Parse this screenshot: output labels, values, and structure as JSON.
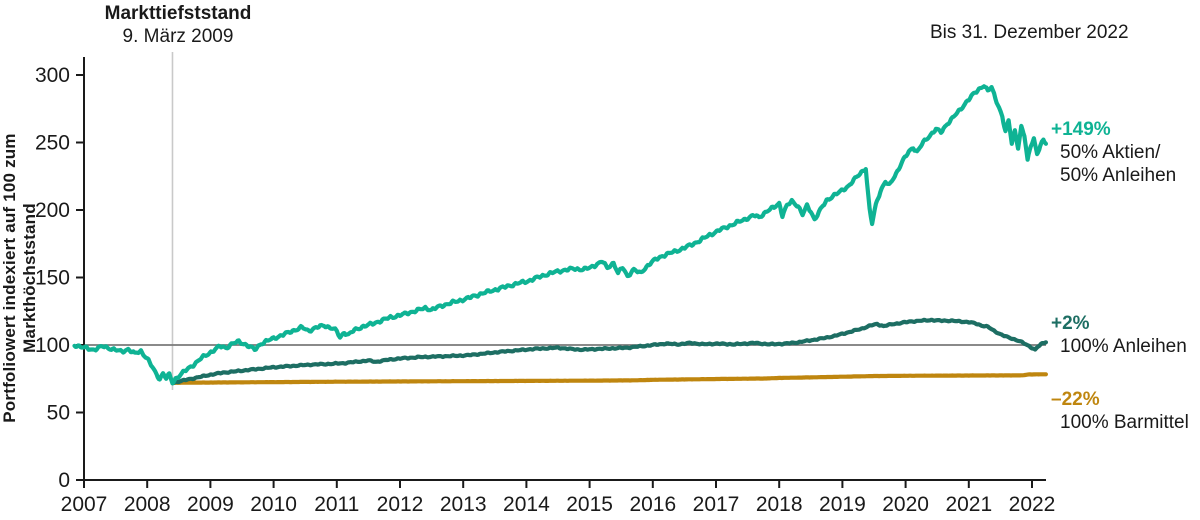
{
  "annotations": {
    "market_low_title": "Markttiefststand",
    "market_low_date": "9. März 2009",
    "end_date_note": "Bis 31. Dezember 2022"
  },
  "y_axis": {
    "title": "Portfoliowert indexiert auf 100 zum Markthöchststand",
    "ticks": [
      300,
      250,
      200,
      150,
      100,
      50,
      0
    ]
  },
  "x_axis": {
    "ticks": [
      "2007",
      "2008",
      "2009",
      "2010",
      "2011",
      "2012",
      "2013",
      "2014",
      "2015",
      "2016",
      "2017",
      "2018",
      "2019",
      "2020",
      "2021",
      "2022"
    ]
  },
  "right_labels": [
    {
      "pct": "+149%",
      "line1": "50% Aktien/",
      "line2": "50% Anleihen",
      "color": "#0fb394"
    },
    {
      "pct": "+2%",
      "line1": "100% Anleihen",
      "line2": "",
      "color": "#1d6e63"
    },
    {
      "pct": "–22%",
      "line1": "100% Barmittel",
      "line2": "",
      "color": "#bf860f"
    }
  ],
  "colors": {
    "stocks_bonds": "#0fb394",
    "bonds": "#1d6e63",
    "cash": "#bf860f",
    "reference_line": "#7a7a7a",
    "event_line": "#c9c9c9",
    "axis": "#1a1a1a"
  },
  "chart_data": {
    "type": "line",
    "title": "",
    "xlabel": "",
    "ylabel": "Portfoliowert indexiert auf 100 zum Markthöchststand",
    "x_note": "t in year-tick units: 0 = '2007' tick, 15 = '2022' tick; data runs to 31 Dec 2022",
    "ylim": [
      0,
      310
    ],
    "xlim": [
      -0.2,
      15.35
    ],
    "grid": false,
    "legend_position": "right-of-line-ends",
    "reference_line_y": 100,
    "event_line": {
      "t": 1.4,
      "label": "Markttiefststand 9. März 2009"
    },
    "series": [
      {
        "name": "50% Aktien/50% Anleihen",
        "final_return_pct": "+149%",
        "color": "#0fb394",
        "jitter": 1.4,
        "points": [
          [
            -0.15,
            100
          ],
          [
            0,
            98
          ],
          [
            0.15,
            96.5
          ],
          [
            0.3,
            99
          ],
          [
            0.45,
            97
          ],
          [
            0.6,
            95
          ],
          [
            0.7,
            97
          ],
          [
            0.8,
            93.5
          ],
          [
            0.9,
            95.5
          ],
          [
            1.0,
            90
          ],
          [
            1.1,
            82
          ],
          [
            1.15,
            78
          ],
          [
            1.2,
            75
          ],
          [
            1.25,
            79
          ],
          [
            1.3,
            75.5
          ],
          [
            1.35,
            78
          ],
          [
            1.4,
            72
          ],
          [
            1.45,
            75
          ],
          [
            1.55,
            79
          ],
          [
            1.65,
            82.5
          ],
          [
            1.75,
            86
          ],
          [
            1.85,
            90
          ],
          [
            1.95,
            93
          ],
          [
            2.05,
            96
          ],
          [
            2.15,
            99
          ],
          [
            2.25,
            98
          ],
          [
            2.35,
            101
          ],
          [
            2.45,
            102.5
          ],
          [
            2.55,
            100.5
          ],
          [
            2.65,
            98
          ],
          [
            2.7,
            96.5
          ],
          [
            2.8,
            101
          ],
          [
            2.9,
            103
          ],
          [
            3.0,
            105
          ],
          [
            3.15,
            107.5
          ],
          [
            3.3,
            110.5
          ],
          [
            3.45,
            113
          ],
          [
            3.55,
            110.5
          ],
          [
            3.65,
            112.5
          ],
          [
            3.8,
            114.5
          ],
          [
            3.95,
            112
          ],
          [
            4.0,
            110
          ],
          [
            4.05,
            105.5
          ],
          [
            4.12,
            109.5
          ],
          [
            4.18,
            107.5
          ],
          [
            4.28,
            111
          ],
          [
            4.4,
            113.5
          ],
          [
            4.55,
            115.5
          ],
          [
            4.7,
            118
          ],
          [
            4.85,
            120.5
          ],
          [
            5.0,
            122
          ],
          [
            5.15,
            124
          ],
          [
            5.3,
            126
          ],
          [
            5.4,
            127.5
          ],
          [
            5.5,
            126
          ],
          [
            5.65,
            129
          ],
          [
            5.8,
            131
          ],
          [
            5.95,
            133
          ],
          [
            6.1,
            135
          ],
          [
            6.25,
            137.5
          ],
          [
            6.4,
            139.5
          ],
          [
            6.55,
            141.5
          ],
          [
            6.7,
            143.5
          ],
          [
            6.85,
            145.5
          ],
          [
            7.0,
            147
          ],
          [
            7.15,
            149.5
          ],
          [
            7.3,
            152
          ],
          [
            7.45,
            154
          ],
          [
            7.6,
            155.5
          ],
          [
            7.75,
            156.5
          ],
          [
            7.9,
            156
          ],
          [
            8.0,
            157
          ],
          [
            8.1,
            159.5
          ],
          [
            8.2,
            162
          ],
          [
            8.28,
            157
          ],
          [
            8.38,
            161
          ],
          [
            8.45,
            153
          ],
          [
            8.52,
            157.5
          ],
          [
            8.6,
            151
          ],
          [
            8.7,
            156
          ],
          [
            8.8,
            153
          ],
          [
            8.9,
            158
          ],
          [
            9.0,
            162
          ],
          [
            9.15,
            166
          ],
          [
            9.3,
            168.5
          ],
          [
            9.45,
            171
          ],
          [
            9.6,
            174
          ],
          [
            9.75,
            177.5
          ],
          [
            9.9,
            181.5
          ],
          [
            10.05,
            185
          ],
          [
            10.2,
            188
          ],
          [
            10.35,
            191
          ],
          [
            10.5,
            194
          ],
          [
            10.6,
            196
          ],
          [
            10.68,
            194.5
          ],
          [
            10.8,
            199
          ],
          [
            10.92,
            202
          ],
          [
            11.0,
            205
          ],
          [
            11.05,
            196
          ],
          [
            11.12,
            203
          ],
          [
            11.2,
            206.5
          ],
          [
            11.3,
            203
          ],
          [
            11.37,
            196.5
          ],
          [
            11.44,
            203
          ],
          [
            11.5,
            199
          ],
          [
            11.56,
            193
          ],
          [
            11.65,
            200
          ],
          [
            11.75,
            207
          ],
          [
            11.85,
            210.5
          ],
          [
            11.95,
            213
          ],
          [
            12.1,
            218
          ],
          [
            12.2,
            223
          ],
          [
            12.3,
            228
          ],
          [
            12.37,
            231
          ],
          [
            12.43,
            200
          ],
          [
            12.47,
            190
          ],
          [
            12.53,
            204
          ],
          [
            12.6,
            214
          ],
          [
            12.68,
            221
          ],
          [
            12.74,
            218
          ],
          [
            12.85,
            227
          ],
          [
            12.95,
            236
          ],
          [
            13.05,
            243
          ],
          [
            13.12,
            246.5
          ],
          [
            13.18,
            243
          ],
          [
            13.28,
            250
          ],
          [
            13.38,
            255
          ],
          [
            13.48,
            260
          ],
          [
            13.56,
            257.5
          ],
          [
            13.66,
            264
          ],
          [
            13.76,
            269
          ],
          [
            13.86,
            274
          ],
          [
            13.96,
            280
          ],
          [
            14.06,
            285
          ],
          [
            14.16,
            289.5
          ],
          [
            14.24,
            292.5
          ],
          [
            14.3,
            288
          ],
          [
            14.36,
            291
          ],
          [
            14.42,
            283
          ],
          [
            14.48,
            276
          ],
          [
            14.53,
            269
          ],
          [
            14.58,
            258
          ],
          [
            14.63,
            266
          ],
          [
            14.68,
            250
          ],
          [
            14.73,
            259
          ],
          [
            14.78,
            246
          ],
          [
            14.83,
            261
          ],
          [
            14.88,
            255
          ],
          [
            14.93,
            237
          ],
          [
            14.98,
            248
          ],
          [
            15.03,
            253
          ],
          [
            15.08,
            241
          ],
          [
            15.13,
            247
          ],
          [
            15.18,
            252
          ],
          [
            15.22,
            249
          ]
        ]
      },
      {
        "name": "100% Anleihen",
        "final_return_pct": "+2%",
        "color": "#1d6e63",
        "jitter": 0.55,
        "points": [
          [
            1.4,
            72
          ],
          [
            1.6,
            74
          ],
          [
            1.8,
            76
          ],
          [
            2.0,
            78
          ],
          [
            2.2,
            79.5
          ],
          [
            2.5,
            81
          ],
          [
            2.8,
            82.5
          ],
          [
            3.0,
            83.5
          ],
          [
            3.3,
            84.5
          ],
          [
            3.6,
            85.5
          ],
          [
            3.9,
            86
          ],
          [
            4.1,
            86.5
          ],
          [
            4.3,
            87.5
          ],
          [
            4.5,
            88.5
          ],
          [
            4.62,
            87.5
          ],
          [
            4.8,
            89
          ],
          [
            5.0,
            90
          ],
          [
            5.3,
            91
          ],
          [
            5.6,
            91.5
          ],
          [
            5.9,
            92
          ],
          [
            6.1,
            92.5
          ],
          [
            6.3,
            93.5
          ],
          [
            6.6,
            95
          ],
          [
            6.85,
            96
          ],
          [
            7.1,
            97
          ],
          [
            7.3,
            97.5
          ],
          [
            7.5,
            98
          ],
          [
            7.7,
            97
          ],
          [
            7.9,
            96.5
          ],
          [
            8.1,
            97
          ],
          [
            8.35,
            97.5
          ],
          [
            8.6,
            98
          ],
          [
            8.8,
            99
          ],
          [
            9.0,
            100
          ],
          [
            9.2,
            101
          ],
          [
            9.4,
            100.5
          ],
          [
            9.6,
            101.5
          ],
          [
            9.8,
            100.5
          ],
          [
            10.0,
            101
          ],
          [
            10.3,
            100.5
          ],
          [
            10.6,
            101.5
          ],
          [
            10.85,
            100.5
          ],
          [
            11.1,
            101
          ],
          [
            11.3,
            102
          ],
          [
            11.5,
            103.5
          ],
          [
            11.7,
            105
          ],
          [
            11.9,
            107
          ],
          [
            12.1,
            109.5
          ],
          [
            12.3,
            112
          ],
          [
            12.45,
            114.5
          ],
          [
            12.55,
            115.5
          ],
          [
            12.65,
            114
          ],
          [
            12.8,
            115.5
          ],
          [
            12.95,
            116.5
          ],
          [
            13.1,
            117.5
          ],
          [
            13.25,
            118
          ],
          [
            13.4,
            118.5
          ],
          [
            13.55,
            118
          ],
          [
            13.7,
            118
          ],
          [
            13.85,
            117.5
          ],
          [
            14.0,
            117
          ],
          [
            14.1,
            116
          ],
          [
            14.2,
            114.5
          ],
          [
            14.3,
            113.5
          ],
          [
            14.4,
            110.5
          ],
          [
            14.5,
            108
          ],
          [
            14.6,
            106
          ],
          [
            14.7,
            104.5
          ],
          [
            14.8,
            103
          ],
          [
            14.9,
            100.5
          ],
          [
            15.0,
            98
          ],
          [
            15.05,
            96.5
          ],
          [
            15.1,
            99
          ],
          [
            15.16,
            101
          ],
          [
            15.22,
            102
          ]
        ]
      },
      {
        "name": "100% Barmittel",
        "final_return_pct": "–22%",
        "color": "#bf860f",
        "jitter": 0.06,
        "points": [
          [
            1.4,
            72
          ],
          [
            2.0,
            72.2
          ],
          [
            3.0,
            72.5
          ],
          [
            4.0,
            72.8
          ],
          [
            5.0,
            73
          ],
          [
            6.0,
            73.2
          ],
          [
            7.0,
            73.4
          ],
          [
            8.0,
            73.6
          ],
          [
            8.7,
            73.8
          ],
          [
            9.0,
            74.2
          ],
          [
            10.0,
            74.8
          ],
          [
            10.8,
            75.2
          ],
          [
            11.0,
            75.6
          ],
          [
            11.5,
            76
          ],
          [
            12.0,
            76.5
          ],
          [
            12.5,
            77
          ],
          [
            13.0,
            77.2
          ],
          [
            14.0,
            77.4
          ],
          [
            14.85,
            77.5
          ],
          [
            14.95,
            78.2
          ],
          [
            15.22,
            78.3
          ]
        ]
      }
    ]
  }
}
